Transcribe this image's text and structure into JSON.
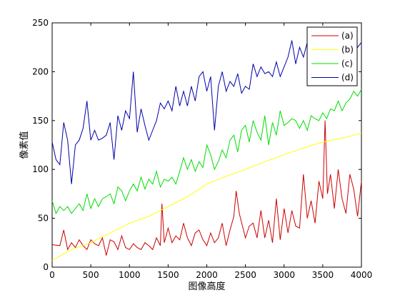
{
  "chart_data": {
    "type": "line",
    "title": "",
    "xlabel": "图像高度",
    "ylabel": "像素值",
    "xlim": [
      0,
      4000
    ],
    "ylim": [
      0,
      250
    ],
    "xticks": [
      0,
      500,
      1000,
      1500,
      2000,
      2500,
      3000,
      3500,
      4000
    ],
    "yticks": [
      0,
      50,
      100,
      150,
      200,
      250
    ],
    "grid": false,
    "legend_position": "top-right",
    "series": [
      {
        "name": "(a)",
        "color": "#cc0000",
        "x": [
          0,
          100,
          150,
          200,
          250,
          300,
          350,
          400,
          450,
          500,
          550,
          600,
          650,
          700,
          750,
          800,
          850,
          900,
          950,
          1000,
          1050,
          1100,
          1150,
          1200,
          1250,
          1300,
          1350,
          1400,
          1420,
          1450,
          1500,
          1550,
          1600,
          1650,
          1700,
          1750,
          1800,
          1850,
          1900,
          1950,
          2000,
          2050,
          2100,
          2150,
          2200,
          2250,
          2300,
          2350,
          2380,
          2420,
          2500,
          2550,
          2600,
          2650,
          2700,
          2750,
          2800,
          2850,
          2900,
          2950,
          3000,
          3050,
          3100,
          3150,
          3200,
          3250,
          3300,
          3350,
          3400,
          3450,
          3500,
          3530,
          3560,
          3600,
          3650,
          3700,
          3750,
          3800,
          3850,
          3900,
          3950,
          4000
        ],
        "y": [
          23,
          22,
          38,
          18,
          25,
          20,
          28,
          22,
          18,
          28,
          24,
          22,
          30,
          12,
          28,
          26,
          18,
          32,
          20,
          18,
          24,
          20,
          18,
          25,
          22,
          18,
          30,
          22,
          65,
          25,
          40,
          25,
          32,
          28,
          45,
          30,
          22,
          35,
          38,
          28,
          22,
          35,
          25,
          30,
          45,
          22,
          38,
          52,
          78,
          55,
          30,
          42,
          45,
          30,
          58,
          30,
          48,
          25,
          70,
          28,
          60,
          35,
          58,
          42,
          40,
          95,
          50,
          68,
          45,
          88,
          70,
          150,
          75,
          95,
          60,
          100,
          70,
          55,
          95,
          80,
          52,
          88
        ]
      },
      {
        "name": "(b)",
        "color": "#ffff00",
        "x": [
          0,
          250,
          500,
          750,
          1000,
          1250,
          1500,
          1750,
          2000,
          2250,
          2500,
          2750,
          3000,
          3250,
          3500,
          3750,
          3900,
          4000
        ],
        "y": [
          7,
          18,
          25,
          35,
          45,
          52,
          62,
          72,
          85,
          93,
          100,
          108,
          115,
          122,
          128,
          132,
          135,
          137
        ]
      },
      {
        "name": "(c)",
        "color": "#00dd00",
        "x": [
          0,
          50,
          100,
          150,
          200,
          250,
          300,
          350,
          400,
          450,
          500,
          550,
          600,
          650,
          700,
          750,
          800,
          850,
          900,
          950,
          1000,
          1050,
          1100,
          1150,
          1200,
          1250,
          1300,
          1350,
          1400,
          1450,
          1500,
          1550,
          1600,
          1650,
          1700,
          1750,
          1800,
          1850,
          1900,
          1950,
          2000,
          2050,
          2100,
          2150,
          2200,
          2250,
          2300,
          2350,
          2400,
          2450,
          2500,
          2550,
          2600,
          2650,
          2700,
          2750,
          2800,
          2850,
          2900,
          2950,
          3000,
          3050,
          3100,
          3150,
          3200,
          3250,
          3300,
          3350,
          3400,
          3450,
          3500,
          3550,
          3600,
          3650,
          3700,
          3750,
          3800,
          3850,
          3900,
          3950,
          4000
        ],
        "y": [
          68,
          55,
          62,
          58,
          62,
          55,
          60,
          65,
          58,
          75,
          60,
          70,
          62,
          70,
          72,
          75,
          65,
          82,
          78,
          68,
          78,
          85,
          78,
          92,
          80,
          90,
          85,
          98,
          82,
          90,
          88,
          92,
          85,
          98,
          112,
          100,
          110,
          98,
          108,
          102,
          125,
          115,
          100,
          108,
          120,
          112,
          130,
          135,
          118,
          140,
          145,
          128,
          150,
          138,
          130,
          155,
          125,
          148,
          135,
          160,
          145,
          148,
          152,
          150,
          142,
          150,
          140,
          155,
          152,
          150,
          158,
          152,
          162,
          160,
          170,
          160,
          168,
          172,
          180,
          175,
          182
        ]
      },
      {
        "name": "(d)",
        "color": "#0000aa",
        "x": [
          0,
          50,
          100,
          150,
          200,
          250,
          300,
          350,
          400,
          450,
          500,
          550,
          600,
          650,
          700,
          750,
          800,
          850,
          900,
          950,
          1000,
          1050,
          1100,
          1150,
          1200,
          1250,
          1300,
          1350,
          1400,
          1450,
          1500,
          1550,
          1600,
          1650,
          1700,
          1750,
          1800,
          1850,
          1900,
          1950,
          2000,
          2050,
          2100,
          2150,
          2200,
          2250,
          2300,
          2350,
          2400,
          2450,
          2500,
          2550,
          2600,
          2650,
          2700,
          2750,
          2800,
          2850,
          2900,
          2950,
          3000,
          3050,
          3100,
          3150,
          3200,
          3250,
          3300,
          3350,
          3400,
          3450,
          3500,
          3550,
          3600,
          3650,
          3700,
          3750,
          3800,
          3850,
          3900,
          3950,
          4000
        ],
        "y": [
          128,
          110,
          105,
          148,
          130,
          85,
          125,
          130,
          142,
          170,
          130,
          140,
          130,
          132,
          135,
          148,
          110,
          155,
          140,
          160,
          152,
          200,
          138,
          162,
          145,
          130,
          140,
          150,
          168,
          162,
          170,
          160,
          185,
          165,
          180,
          165,
          185,
          170,
          195,
          200,
          180,
          195,
          140,
          185,
          200,
          180,
          190,
          185,
          198,
          178,
          185,
          182,
          208,
          195,
          205,
          198,
          200,
          195,
          210,
          195,
          205,
          215,
          232,
          208,
          225,
          215,
          230,
          210,
          225,
          215,
          230,
          222,
          228,
          218,
          240,
          225,
          230,
          220,
          235,
          225,
          230
        ]
      }
    ]
  }
}
